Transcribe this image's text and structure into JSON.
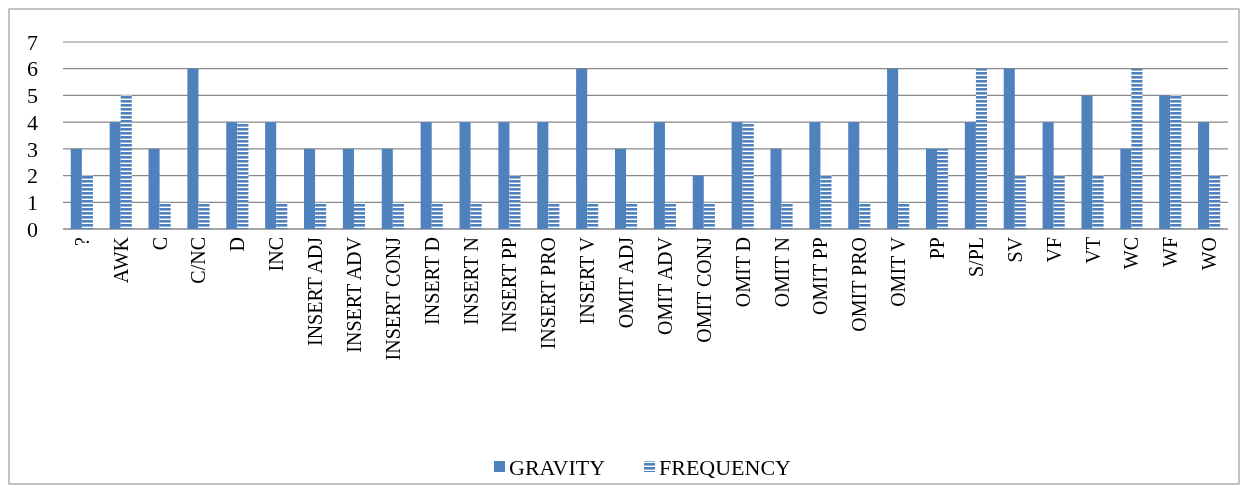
{
  "chart_data": {
    "type": "bar",
    "categories": [
      "?",
      "AWK",
      "C",
      "C/NC",
      "D",
      "INC",
      "INSERT ADJ",
      "INSERT ADV",
      "INSERT CONJ",
      "INSERT D",
      "INSERT N",
      "INSERT PP",
      "INSERT PRO",
      "INSERT V",
      "OMIT ADJ",
      "OMIT ADV",
      "OMIT CONJ",
      "OMIT D",
      "OMIT N",
      "OMIT PP",
      "OMIT PRO",
      "OMIT V",
      "PP",
      "S/PL",
      "SV",
      "VF",
      "VT",
      "WC",
      "WF",
      "WO"
    ],
    "series": [
      {
        "name": "GRAVITY",
        "color": "#4f81bd",
        "values": [
          3,
          4,
          3,
          6,
          4,
          4,
          3,
          3,
          3,
          4,
          4,
          4,
          4,
          6,
          3,
          4,
          2,
          4,
          3,
          4,
          4,
          6,
          3,
          4,
          6,
          4,
          5,
          3,
          5,
          4
        ]
      },
      {
        "name": "FREQUENCY",
        "color": "#4f81bd",
        "values": [
          2,
          5,
          1,
          1,
          4,
          1,
          1,
          1,
          1,
          1,
          1,
          2,
          1,
          1,
          1,
          1,
          1,
          4,
          1,
          2,
          1,
          1,
          3,
          6,
          2,
          2,
          2,
          6,
          5,
          2
        ]
      }
    ],
    "ylim": [
      0,
      7
    ],
    "yticks": [
      0,
      1,
      2,
      3,
      4,
      5,
      6,
      7
    ],
    "grid": "y",
    "legend": "bottom"
  }
}
